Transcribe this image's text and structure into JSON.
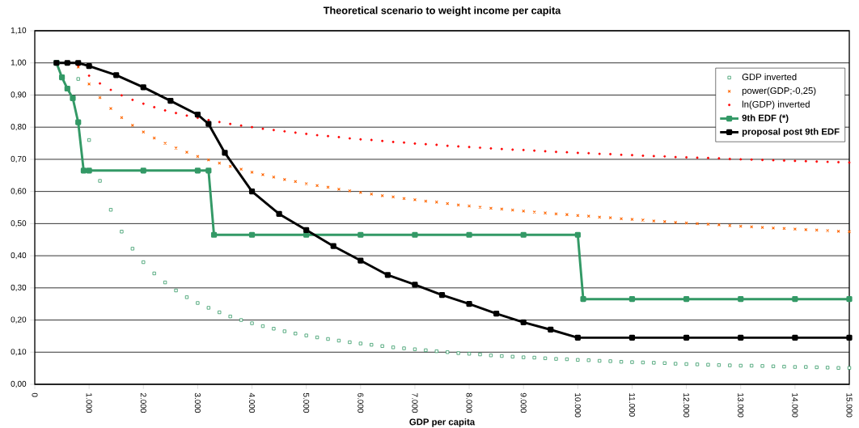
{
  "chart_data": {
    "type": "scatter",
    "title": "Theoretical scenario to weight income per capita",
    "xlabel": "GDP per capita",
    "xlim": [
      0,
      15000
    ],
    "ylim": [
      0,
      1.1
    ],
    "xticks": [
      0,
      {
        "value": 1000,
        "label": "1.000"
      },
      {
        "value": 2000,
        "label": "2.000"
      },
      {
        "value": 3000,
        "label": "3.000"
      },
      {
        "value": 4000,
        "label": "4.000"
      },
      {
        "value": 5000,
        "label": "5.000"
      },
      {
        "value": 6000,
        "label": "6.000"
      },
      {
        "value": 7000,
        "label": "7.000"
      },
      {
        "value": 8000,
        "label": "8.000"
      },
      {
        "value": 9000,
        "label": "9.000"
      },
      {
        "value": 10000,
        "label": "10.000"
      },
      {
        "value": 11000,
        "label": "11.000"
      },
      {
        "value": 12000,
        "label": "12.000"
      },
      {
        "value": 13000,
        "label": "13.000"
      },
      {
        "value": 14000,
        "label": "14.000"
      },
      {
        "value": 15000,
        "label": "15.000"
      }
    ],
    "yticks": [
      {
        "value": 0,
        "label": "0,00"
      },
      {
        "value": 0.1,
        "label": "0,10"
      },
      {
        "value": 0.2,
        "label": "0,20"
      },
      {
        "value": 0.3,
        "label": "0,30"
      },
      {
        "value": 0.4,
        "label": "0,40"
      },
      {
        "value": 0.5,
        "label": "0,50"
      },
      {
        "value": 0.6,
        "label": "0,60"
      },
      {
        "value": 0.7,
        "label": "0,70"
      },
      {
        "value": 0.8,
        "label": "0,80"
      },
      {
        "value": 0.9,
        "label": "0,90"
      },
      {
        "value": 1,
        "label": "1,00"
      },
      {
        "value": 1.1,
        "label": "1,10"
      }
    ],
    "grid": "y",
    "legend": "top right",
    "x": [
      800,
      1000,
      1200,
      1400,
      1600,
      1800,
      2000,
      2200,
      2400,
      2600,
      2800,
      3000,
      3200,
      3400,
      3600,
      3800,
      4000,
      4200,
      4400,
      4600,
      4800,
      5000,
      5200,
      5400,
      5600,
      5800,
      6000,
      6200,
      6400,
      6600,
      6800,
      7000,
      7200,
      7400,
      7600,
      7800,
      8000,
      8200,
      8400,
      8600,
      8800,
      9000,
      9200,
      9400,
      9600,
      9800,
      10000,
      10200,
      10400,
      10600,
      10800,
      11000,
      11200,
      11400,
      11600,
      11800,
      12000,
      12200,
      12400,
      12600,
      12800,
      13000,
      13200,
      13400,
      13600,
      13800,
      14000,
      14200,
      14400,
      14600,
      14800,
      15000
    ],
    "series": [
      {
        "name": "GDP inverted",
        "marker": "square",
        "color": "#339966",
        "values": [
          0.95,
          0.76,
          0.633,
          0.543,
          0.475,
          0.422,
          0.38,
          0.345,
          0.317,
          0.292,
          0.271,
          0.253,
          0.238,
          0.224,
          0.211,
          0.2,
          0.19,
          0.181,
          0.173,
          0.165,
          0.158,
          0.152,
          0.146,
          0.141,
          0.136,
          0.131,
          0.127,
          0.123,
          0.119,
          0.115,
          0.112,
          0.109,
          0.106,
          0.103,
          0.1,
          0.097,
          0.095,
          0.093,
          0.09,
          0.088,
          0.086,
          0.084,
          0.083,
          0.081,
          0.079,
          0.078,
          0.076,
          0.075,
          0.073,
          0.072,
          0.07,
          0.069,
          0.068,
          0.067,
          0.066,
          0.064,
          0.063,
          0.062,
          0.061,
          0.06,
          0.059,
          0.058,
          0.058,
          0.057,
          0.056,
          0.055,
          0.054,
          0.054,
          0.053,
          0.052,
          0.051,
          0.051
        ]
      },
      {
        "name": "power(GDP;-0,25)",
        "marker": "cross",
        "color": "#ff6600",
        "values": [
          0.987,
          0.934,
          0.892,
          0.858,
          0.83,
          0.806,
          0.785,
          0.766,
          0.75,
          0.735,
          0.722,
          0.709,
          0.698,
          0.688,
          0.678,
          0.669,
          0.66,
          0.652,
          0.645,
          0.637,
          0.631,
          0.624,
          0.618,
          0.613,
          0.607,
          0.602,
          0.597,
          0.592,
          0.587,
          0.583,
          0.578,
          0.574,
          0.57,
          0.567,
          0.562,
          0.558,
          0.555,
          0.551,
          0.548,
          0.545,
          0.542,
          0.539,
          0.536,
          0.533,
          0.53,
          0.528,
          0.525,
          0.523,
          0.52,
          0.518,
          0.515,
          0.513,
          0.511,
          0.508,
          0.506,
          0.504,
          0.502,
          0.5,
          0.498,
          0.496,
          0.494,
          0.492,
          0.49,
          0.488,
          0.486,
          0.485,
          0.483,
          0.481,
          0.48,
          0.478,
          0.476,
          0.475
        ]
      },
      {
        "name": "ln(GDP) inverted",
        "marker": "circle",
        "color": "#ff0000",
        "values": [
          0.992,
          0.96,
          0.936,
          0.916,
          0.899,
          0.885,
          0.873,
          0.862,
          0.852,
          0.844,
          0.836,
          0.829,
          0.822,
          0.816,
          0.81,
          0.805,
          0.8,
          0.795,
          0.791,
          0.787,
          0.783,
          0.779,
          0.775,
          0.772,
          0.769,
          0.765,
          0.762,
          0.76,
          0.757,
          0.754,
          0.752,
          0.749,
          0.747,
          0.745,
          0.742,
          0.74,
          0.738,
          0.736,
          0.734,
          0.732,
          0.73,
          0.729,
          0.727,
          0.725,
          0.723,
          0.722,
          0.72,
          0.719,
          0.717,
          0.716,
          0.714,
          0.713,
          0.711,
          0.71,
          0.709,
          0.707,
          0.706,
          0.705,
          0.704,
          0.703,
          0.701,
          0.7,
          0.699,
          0.698,
          0.697,
          0.696,
          0.695,
          0.694,
          0.693,
          0.692,
          0.691,
          0.69
        ]
      },
      {
        "name": "9th EDF (*)",
        "type": "line",
        "marker": "square",
        "color": "#339966",
        "x": [
          400,
          500,
          600,
          700,
          800,
          900,
          1000,
          2000,
          3000,
          3200,
          3300,
          4000,
          5000,
          6000,
          7000,
          8000,
          9000,
          10000,
          10100,
          11000,
          12000,
          13000,
          14000,
          15000
        ],
        "values": [
          1.0,
          0.955,
          0.92,
          0.89,
          0.815,
          0.665,
          0.665,
          0.665,
          0.665,
          0.665,
          0.465,
          0.465,
          0.465,
          0.465,
          0.465,
          0.465,
          0.465,
          0.465,
          0.265,
          0.265,
          0.265,
          0.265,
          0.265,
          0.265
        ]
      },
      {
        "name": "proposal post 9th EDF",
        "type": "line",
        "marker": "square",
        "color": "#000000",
        "x": [
          400,
          600,
          800,
          1000,
          1500,
          2000,
          2500,
          3000,
          3200,
          3500,
          4000,
          4500,
          5000,
          5500,
          6000,
          6500,
          7000,
          7500,
          8000,
          8500,
          9000,
          9500,
          10000,
          11000,
          12000,
          13000,
          14000,
          15000
        ],
        "values": [
          1.0,
          1.0,
          1.0,
          0.99,
          0.962,
          0.924,
          0.882,
          0.839,
          0.81,
          0.72,
          0.6,
          0.53,
          0.48,
          0.43,
          0.385,
          0.34,
          0.31,
          0.278,
          0.25,
          0.22,
          0.193,
          0.17,
          0.145,
          0.145,
          0.145,
          0.145,
          0.145,
          0.145
        ]
      }
    ]
  }
}
